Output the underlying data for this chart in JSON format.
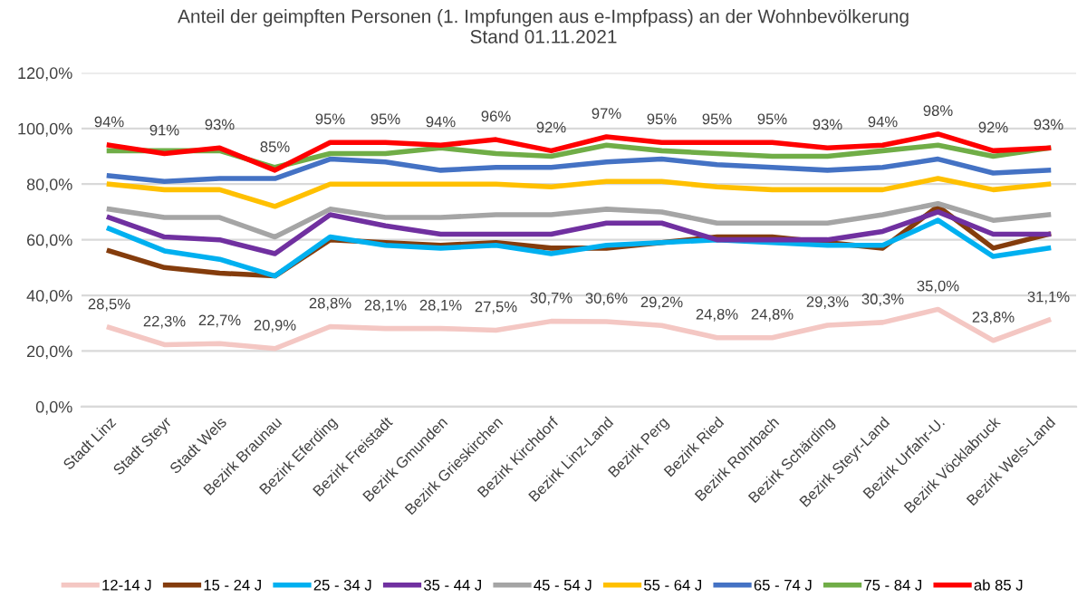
{
  "chart_data": {
    "type": "line",
    "title": "Anteil der geimpften Personen (1. Impfungen aus e-Impfpass) an der Wohnbevölkerung\nStand 01.11.2021",
    "categories": [
      "Stadt Linz",
      "Stadt Steyr",
      "Stadt Wels",
      "Bezirk Braunau",
      "Bezirk Eferding",
      "Bezirk Freistadt",
      "Bezirk Gmunden",
      "Bezirk Grieskirchen",
      "Bezirk Kirchdorf",
      "Bezirk Linz-Land",
      "Bezirk Perg",
      "Bezirk Ried",
      "Bezirk Rohrbach",
      "Bezirk Schärding",
      "Bezirk Steyr-Land",
      "Bezirk Urfahr-U.",
      "Bezirk Vöcklabruck",
      "Bezirk Wels-Land"
    ],
    "series": [
      {
        "name": "12-14 J",
        "color": "#f4c7c3",
        "values": [
          28.5,
          22.3,
          22.7,
          20.9,
          28.8,
          28.1,
          28.1,
          27.5,
          30.7,
          30.6,
          29.2,
          24.8,
          24.8,
          29.3,
          30.3,
          35.0,
          23.8,
          31.1
        ],
        "value_labels": [
          "28,5%",
          "22,3%",
          "22,7%",
          "20,9%",
          "28,8%",
          "28,1%",
          "28,1%",
          "27,5%",
          "30,7%",
          "30,6%",
          "29,2%",
          "24,8%",
          "24,8%",
          "29,3%",
          "30,3%",
          "35,0%",
          "23,8%",
          "31,1%"
        ]
      },
      {
        "name": "15 - 24 J",
        "color": "#843c0c",
        "values": [
          56,
          50,
          48,
          47,
          60,
          59,
          58,
          59,
          57,
          57,
          59,
          61,
          61,
          59,
          57,
          72,
          57,
          62
        ]
      },
      {
        "name": "25 - 34 J",
        "color": "#00b0f0",
        "values": [
          64,
          56,
          53,
          47,
          61,
          58,
          57,
          58,
          55,
          58,
          59,
          60,
          59,
          58,
          58,
          67,
          54,
          57
        ]
      },
      {
        "name": "35 - 44 J",
        "color": "#7030a0",
        "values": [
          68,
          61,
          60,
          55,
          69,
          65,
          62,
          62,
          62,
          66,
          66,
          60,
          60,
          60,
          63,
          70,
          62,
          62
        ]
      },
      {
        "name": "45 - 54 J",
        "color": "#a5a5a5",
        "values": [
          71,
          68,
          68,
          61,
          71,
          68,
          68,
          69,
          69,
          71,
          70,
          66,
          66,
          66,
          69,
          73,
          67,
          69
        ]
      },
      {
        "name": "55 - 64 J",
        "color": "#ffc000",
        "values": [
          80,
          78,
          78,
          72,
          80,
          80,
          80,
          80,
          79,
          81,
          81,
          79,
          78,
          78,
          78,
          82,
          78,
          80
        ]
      },
      {
        "name": "65 - 74 J",
        "color": "#4472c4",
        "values": [
          83,
          81,
          82,
          82,
          89,
          88,
          85,
          86,
          86,
          88,
          89,
          87,
          86,
          85,
          86,
          89,
          84,
          85
        ]
      },
      {
        "name": "75 - 84 J",
        "color": "#70ad47",
        "values": [
          92,
          92,
          92,
          86,
          91,
          91,
          93,
          91,
          90,
          94,
          92,
          91,
          90,
          90,
          92,
          94,
          90,
          93
        ]
      },
      {
        "name": "ab 85 J",
        "color": "#ff0000",
        "values": [
          94,
          91,
          93,
          85,
          95,
          95,
          94,
          96,
          92,
          97,
          95,
          95,
          95,
          93,
          94,
          98,
          92,
          93
        ],
        "value_labels": [
          "94%",
          "91%",
          "93%",
          "85%",
          "95%",
          "95%",
          "94%",
          "96%",
          "92%",
          "97%",
          "95%",
          "95%",
          "95%",
          "93%",
          "94%",
          "98%",
          "92%",
          "93%"
        ]
      }
    ],
    "ylim": [
      0,
      120
    ],
    "yticks": [
      {
        "value": 0,
        "label": "0,0%"
      },
      {
        "value": 20,
        "label": "20,0%"
      },
      {
        "value": 40,
        "label": "40,0%"
      },
      {
        "value": 60,
        "label": "60,0%"
      },
      {
        "value": 80,
        "label": "80,0%"
      },
      {
        "value": 100,
        "label": "100,0%"
      },
      {
        "value": 120,
        "label": "120,0%"
      }
    ],
    "grid": "y",
    "legend": "bottom",
    "marker": "none",
    "line_style": "solid"
  }
}
